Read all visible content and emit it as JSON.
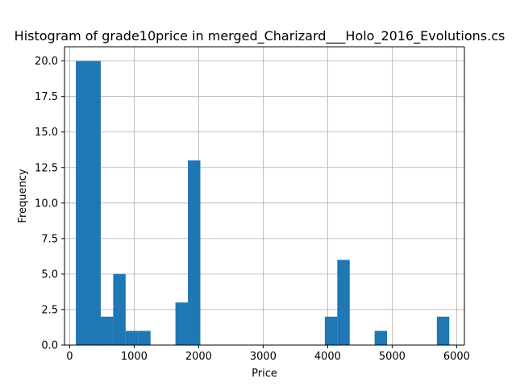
{
  "chart_data": {
    "type": "bar",
    "title": "Histogram of grade10price in merged_Charizard___Holo_2016_Evolutions.cs",
    "xlabel": "Price",
    "ylabel": "Frequency",
    "xlim": [
      -80,
      6120
    ],
    "ylim": [
      0,
      21
    ],
    "grid": true,
    "bar_color": "#1f77b4",
    "bin_width": 193,
    "bins": [
      {
        "x0": 96,
        "x1": 289,
        "count": 20
      },
      {
        "x0": 289,
        "x1": 482,
        "count": 20
      },
      {
        "x0": 482,
        "x1": 675,
        "count": 2
      },
      {
        "x0": 675,
        "x1": 868,
        "count": 5
      },
      {
        "x0": 868,
        "x1": 1061,
        "count": 1
      },
      {
        "x0": 1061,
        "x1": 1254,
        "count": 1
      },
      {
        "x0": 1254,
        "x1": 1447,
        "count": 0
      },
      {
        "x0": 1447,
        "x1": 1640,
        "count": 0
      },
      {
        "x0": 1640,
        "x1": 1833,
        "count": 3
      },
      {
        "x0": 1833,
        "x1": 2026,
        "count": 13
      },
      {
        "x0": 2026,
        "x1": 2219,
        "count": 0
      },
      {
        "x0": 2219,
        "x1": 2412,
        "count": 0
      },
      {
        "x0": 2412,
        "x1": 2605,
        "count": 0
      },
      {
        "x0": 2605,
        "x1": 2798,
        "count": 0
      },
      {
        "x0": 2798,
        "x1": 2991,
        "count": 0
      },
      {
        "x0": 2991,
        "x1": 3184,
        "count": 0
      },
      {
        "x0": 3184,
        "x1": 3377,
        "count": 0
      },
      {
        "x0": 3377,
        "x1": 3570,
        "count": 0
      },
      {
        "x0": 3570,
        "x1": 3763,
        "count": 0
      },
      {
        "x0": 3763,
        "x1": 3956,
        "count": 0
      },
      {
        "x0": 3956,
        "x1": 4149,
        "count": 2
      },
      {
        "x0": 4149,
        "x1": 4342,
        "count": 6
      },
      {
        "x0": 4342,
        "x1": 4535,
        "count": 0
      },
      {
        "x0": 4535,
        "x1": 4728,
        "count": 0
      },
      {
        "x0": 4728,
        "x1": 4921,
        "count": 1
      },
      {
        "x0": 4921,
        "x1": 5114,
        "count": 0
      },
      {
        "x0": 5114,
        "x1": 5307,
        "count": 0
      },
      {
        "x0": 5307,
        "x1": 5500,
        "count": 0
      },
      {
        "x0": 5500,
        "x1": 5693,
        "count": 0
      },
      {
        "x0": 5693,
        "x1": 5886,
        "count": 2
      }
    ],
    "xticks": [
      "0",
      "1000",
      "2000",
      "3000",
      "4000",
      "5000",
      "6000"
    ],
    "xtick_values": [
      0,
      1000,
      2000,
      3000,
      4000,
      5000,
      6000
    ],
    "yticks": [
      "0.0",
      "2.5",
      "5.0",
      "7.5",
      "10.0",
      "12.5",
      "15.0",
      "17.5",
      "20.0"
    ],
    "ytick_values": [
      0,
      2.5,
      5,
      7.5,
      10,
      12.5,
      15,
      17.5,
      20
    ]
  }
}
